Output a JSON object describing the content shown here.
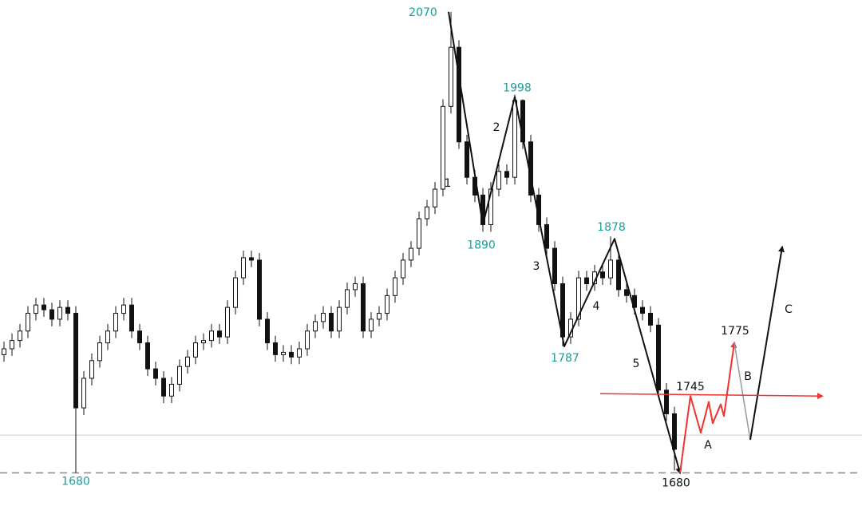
{
  "chart_data": {
    "type": "candlestick",
    "xlim": [
      -0.5,
      107.5
    ],
    "ylim": [
      1652,
      2080
    ],
    "candle_color": "#111111",
    "open": [
      1780,
      1785,
      1792,
      1800,
      1815,
      1822,
      1818,
      1810,
      1820,
      1815,
      1735,
      1760,
      1775,
      1790,
      1800,
      1815,
      1822,
      1800,
      1790,
      1768,
      1760,
      1745,
      1755,
      1770,
      1778,
      1790,
      1792,
      1800,
      1795,
      1820,
      1845,
      1862,
      1860,
      1810,
      1790,
      1780,
      1782,
      1778,
      1785,
      1800,
      1808,
      1815,
      1800,
      1820,
      1835,
      1840,
      1800,
      1810,
      1815,
      1830,
      1845,
      1860,
      1870,
      1895,
      1905,
      1920,
      1990,
      2040,
      1960,
      1930,
      1915,
      1890,
      1920,
      1935,
      1930,
      1995,
      1960,
      1915,
      1890,
      1870,
      1840,
      1795,
      1810,
      1845,
      1840,
      1850,
      1845,
      1860,
      1835,
      1830,
      1820,
      1815,
      1805,
      1750,
      1730
    ],
    "high": [
      1791,
      1798,
      1806,
      1821,
      1828,
      1828,
      1824,
      1826,
      1826,
      1821,
      1766,
      1781,
      1796,
      1806,
      1821,
      1828,
      1828,
      1806,
      1796,
      1774,
      1766,
      1761,
      1776,
      1784,
      1796,
      1798,
      1806,
      1806,
      1826,
      1851,
      1868,
      1868,
      1866,
      1816,
      1796,
      1788,
      1788,
      1791,
      1806,
      1814,
      1821,
      1821,
      1826,
      1841,
      1846,
      1846,
      1816,
      1821,
      1836,
      1851,
      1866,
      1876,
      1901,
      1911,
      1926,
      1996,
      2070,
      2046,
      1966,
      1936,
      1921,
      1926,
      1941,
      1941,
      2000,
      1996,
      1966,
      1921,
      1896,
      1876,
      1846,
      1816,
      1851,
      1851,
      1856,
      1856,
      1880,
      1866,
      1841,
      1836,
      1826,
      1821,
      1811,
      1756,
      1736
    ],
    "low": [
      1774,
      1779,
      1786,
      1794,
      1809,
      1812,
      1804,
      1804,
      1809,
      1680,
      1729,
      1754,
      1769,
      1784,
      1794,
      1809,
      1794,
      1784,
      1762,
      1754,
      1739,
      1739,
      1749,
      1764,
      1772,
      1784,
      1786,
      1789,
      1789,
      1814,
      1839,
      1854,
      1804,
      1784,
      1774,
      1774,
      1772,
      1772,
      1779,
      1794,
      1802,
      1794,
      1794,
      1814,
      1829,
      1794,
      1794,
      1804,
      1809,
      1824,
      1839,
      1854,
      1864,
      1889,
      1899,
      1914,
      1984,
      1954,
      1924,
      1909,
      1884,
      1884,
      1914,
      1924,
      1924,
      1954,
      1909,
      1884,
      1864,
      1834,
      1787,
      1789,
      1804,
      1834,
      1834,
      1839,
      1839,
      1829,
      1824,
      1814,
      1809,
      1799,
      1744,
      1724,
      1682
    ],
    "close": [
      1785,
      1792,
      1800,
      1815,
      1822,
      1818,
      1810,
      1820,
      1815,
      1735,
      1760,
      1775,
      1790,
      1800,
      1815,
      1822,
      1800,
      1790,
      1768,
      1760,
      1745,
      1755,
      1770,
      1778,
      1790,
      1792,
      1800,
      1795,
      1820,
      1845,
      1862,
      1860,
      1810,
      1790,
      1780,
      1782,
      1778,
      1785,
      1800,
      1808,
      1815,
      1800,
      1820,
      1835,
      1840,
      1800,
      1810,
      1815,
      1830,
      1845,
      1860,
      1870,
      1895,
      1905,
      1920,
      1990,
      2040,
      1960,
      1930,
      1915,
      1890,
      1920,
      1935,
      1930,
      1995,
      1960,
      1915,
      1890,
      1870,
      1840,
      1795,
      1810,
      1845,
      1840,
      1850,
      1845,
      1860,
      1835,
      1830,
      1820,
      1815,
      1805,
      1750,
      1730,
      1700
    ],
    "levels": [
      {
        "value": 1712,
        "color": "#cccccc",
        "style": "solid"
      },
      {
        "value": 1680,
        "color": "#888888",
        "style": "dashed"
      }
    ],
    "lines": [
      {
        "color": "#111111",
        "width": 2,
        "arrow": true,
        "x": [
          55.7,
          60,
          64,
          70.2,
          76.5,
          84.7
        ],
        "values": [
          2070,
          1890,
          1998,
          1787,
          1878,
          1680
        ]
      },
      {
        "color": "#ee3333",
        "width": 2,
        "arrow": true,
        "x": [
          84.7,
          86,
          87.3,
          88.3,
          88.8,
          89.8,
          90.2,
          91.5
        ],
        "values": [
          1680,
          1745,
          1714,
          1740,
          1722,
          1738,
          1728,
          1790
        ]
      },
      {
        "color": "#999999",
        "width": 1.5,
        "arrow": false,
        "x": [
          91.5,
          93.5
        ],
        "values": [
          1790,
          1708
        ]
      },
      {
        "color": "#111111",
        "width": 2,
        "arrow": true,
        "x": [
          93.5,
          97.5
        ],
        "values": [
          1708,
          1871
        ]
      },
      {
        "color": "#ee3333",
        "width": 1.5,
        "arrow": true,
        "x": [
          74.7,
          102.5
        ],
        "values": [
          1747,
          1745
        ]
      }
    ],
    "price_labels": [
      2070,
      1998,
      1890,
      1878,
      1787,
      1680,
      1680,
      1745,
      1775
    ],
    "price_label_colors": [
      "#1a9e9e",
      "#1a9e9e",
      "#1a9e9e",
      "#1a9e9e",
      "#1a9e9e",
      "#1a9e9e",
      "#111111",
      "#111111",
      "#111111"
    ],
    "wave_labels": [
      "1",
      "2",
      "3",
      "4",
      "5",
      "A",
      "B",
      "C"
    ]
  }
}
